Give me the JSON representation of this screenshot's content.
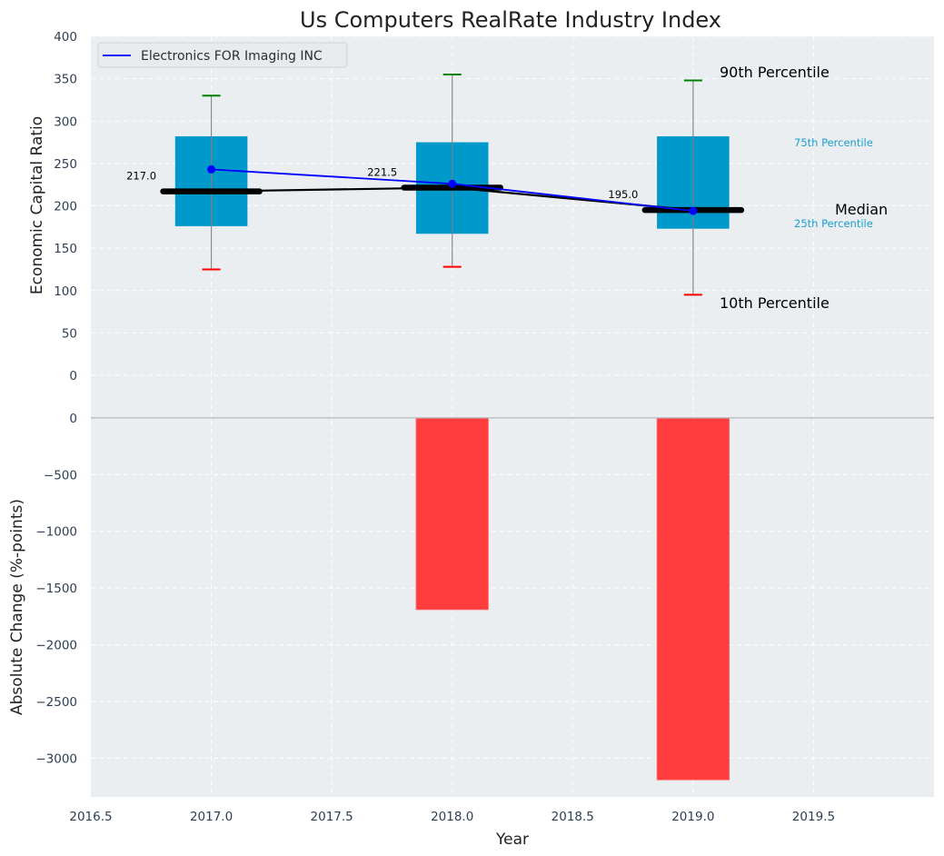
{
  "chart_data": [
    {
      "type": "bar",
      "panel": "top",
      "title": "Us Computers RealRate Industry Index",
      "xlabel": "",
      "ylabel": "Economic Capital Ratio",
      "ylim": [
        0,
        400
      ],
      "xlim": [
        2016.5,
        2020.0
      ],
      "yticks": [
        "0",
        "50",
        "100",
        "150",
        "200",
        "250",
        "300",
        "350",
        "400"
      ],
      "ytick_values": [
        0,
        50,
        100,
        150,
        200,
        250,
        300,
        350,
        400
      ],
      "grid": true,
      "categories": [
        2017,
        2018,
        2019
      ],
      "boxes": [
        {
          "x": 2017,
          "p10": 125,
          "p25": 176,
          "median": 217.0,
          "p75": 282,
          "p90": 330
        },
        {
          "x": 2018,
          "p10": 128,
          "p25": 167,
          "median": 221.5,
          "p75": 275,
          "p90": 355
        },
        {
          "x": 2019,
          "p10": 95,
          "p25": 173,
          "median": 195.0,
          "p75": 282,
          "p90": 348
        }
      ],
      "median_labels": [
        "217.0",
        "221.5",
        "195.0"
      ],
      "series": [
        {
          "name": "Electronics FOR Imaging INC",
          "color": "#0000ff",
          "x": [
            2017,
            2018,
            2019
          ],
          "values": [
            243,
            226,
            194
          ]
        }
      ],
      "legend": {
        "placement": "top-left",
        "entries": [
          "Electronics FOR Imaging INC"
        ]
      },
      "annotations": {
        "p90": "90th Percentile",
        "p75": "75th Percentile",
        "median": "Median",
        "p25": "25th Percentile",
        "p10": "10th Percentile"
      },
      "colors": {
        "box": "#0099cc",
        "median": "#000000",
        "p90_cap": "#008000",
        "p10_cap": "#ff0000",
        "whisker": "#808080",
        "background": "#eaeef0",
        "percentile_text": "#1a9fd0"
      }
    },
    {
      "type": "bar",
      "panel": "bottom",
      "xlabel": "Year",
      "ylabel": "Absolute Change (%-points)",
      "ylim": [
        -3340,
        375
      ],
      "xlim": [
        2016.5,
        2020.0
      ],
      "yticks": [
        "0",
        "−500",
        "−1000",
        "−1500",
        "−2000",
        "−2500",
        "−3000"
      ],
      "ytick_values": [
        0,
        -500,
        -1000,
        -1500,
        -2000,
        -2500,
        -3000
      ],
      "xticks": [
        "2016.5",
        "2017.0",
        "2017.5",
        "2018.0",
        "2018.5",
        "2019.0",
        "2019.5"
      ],
      "xtick_values": [
        2016.5,
        2017.0,
        2017.5,
        2018.0,
        2018.5,
        2019.0,
        2019.5
      ],
      "grid": true,
      "categories": [
        2017,
        2018,
        2019
      ],
      "values": [
        0,
        -1690,
        -3190
      ],
      "colors": {
        "bar": "#ff3d3f",
        "background": "#eaeef0"
      }
    }
  ]
}
